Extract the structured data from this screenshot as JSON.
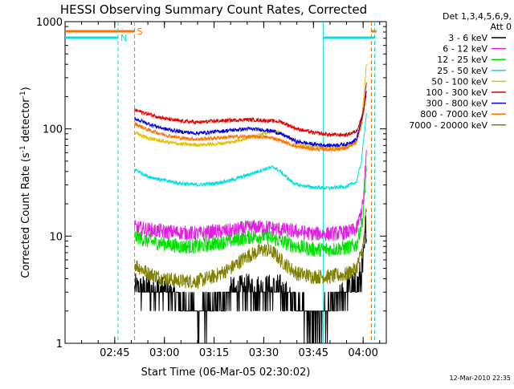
{
  "chart_data": {
    "type": "line",
    "title": "HESSI Observing Summary Count Rates, Corrected",
    "xlabel": "Start Time (06-Mar-05 02:30:02)",
    "ylabel_main": "Corrected Count Rate (s",
    "ylabel_sup1": "-1",
    "ylabel_mid": " detector",
    "ylabel_sup2": "-1",
    "ylabel_end": ")",
    "y_scale": "log",
    "ylim": [
      1,
      1000
    ],
    "xlim_minutes": [
      0,
      97
    ],
    "x_ticks": [
      {
        "minute": 15,
        "label": "02:45"
      },
      {
        "minute": 30,
        "label": "03:00"
      },
      {
        "minute": 45,
        "label": "03:15"
      },
      {
        "minute": 60,
        "label": "03:30"
      },
      {
        "minute": 75,
        "label": "03:45"
      },
      {
        "minute": 90,
        "label": "04:00"
      }
    ],
    "y_ticks": [
      {
        "value": 1000,
        "label": "1000"
      },
      {
        "value": 100,
        "label": "100"
      },
      {
        "value": 10,
        "label": "10"
      },
      {
        "value": 1,
        "label": "1"
      }
    ],
    "legend_header": [
      "Det 1,3,4,5,6,9,",
      "Att 0"
    ],
    "legend_position": "right",
    "series": [
      {
        "name": "3 - 6 keV",
        "color": "#000000",
        "points": [
          [
            21,
            3
          ],
          [
            25,
            3
          ],
          [
            30,
            3
          ],
          [
            35,
            2.2
          ],
          [
            40,
            1.5
          ],
          [
            45,
            1.8
          ],
          [
            50,
            2.8
          ],
          [
            55,
            3
          ],
          [
            60,
            3
          ],
          [
            65,
            3
          ],
          [
            70,
            2
          ],
          [
            75,
            1.3
          ],
          [
            80,
            1.7
          ],
          [
            85,
            3
          ],
          [
            88,
            3.2
          ],
          [
            90,
            5
          ],
          [
            91,
            14
          ]
        ]
      },
      {
        "name": "6 - 12 keV",
        "color": "#e020e0",
        "points": [
          [
            21,
            12
          ],
          [
            25,
            11.5
          ],
          [
            30,
            11
          ],
          [
            35,
            10.8
          ],
          [
            40,
            10.5
          ],
          [
            45,
            11
          ],
          [
            50,
            11.2
          ],
          [
            55,
            12
          ],
          [
            60,
            12.2
          ],
          [
            65,
            11.5
          ],
          [
            70,
            11
          ],
          [
            75,
            10.5
          ],
          [
            80,
            10.5
          ],
          [
            85,
            10.8
          ],
          [
            88,
            11.5
          ],
          [
            90,
            20
          ],
          [
            91,
            60
          ]
        ]
      },
      {
        "name": "12 - 25 keV",
        "color": "#00e000",
        "points": [
          [
            21,
            10
          ],
          [
            25,
            9
          ],
          [
            30,
            8.5
          ],
          [
            35,
            8
          ],
          [
            40,
            8
          ],
          [
            45,
            8.5
          ],
          [
            50,
            9
          ],
          [
            55,
            9.8
          ],
          [
            60,
            10
          ],
          [
            65,
            9
          ],
          [
            70,
            8
          ],
          [
            75,
            7.5
          ],
          [
            80,
            7.5
          ],
          [
            85,
            7.8
          ],
          [
            88,
            8.2
          ],
          [
            90,
            15
          ],
          [
            91,
            45
          ]
        ]
      },
      {
        "name": "25 - 50 keV",
        "color": "#00e0e0",
        "points": [
          [
            21,
            42
          ],
          [
            25,
            36
          ],
          [
            30,
            33
          ],
          [
            35,
            31
          ],
          [
            40,
            30
          ],
          [
            45,
            31
          ],
          [
            50,
            33
          ],
          [
            55,
            37
          ],
          [
            60,
            42
          ],
          [
            63,
            44
          ],
          [
            65,
            40
          ],
          [
            68,
            33
          ],
          [
            70,
            30
          ],
          [
            75,
            28.5
          ],
          [
            80,
            28
          ],
          [
            85,
            29
          ],
          [
            88,
            32
          ],
          [
            89.5,
            50
          ],
          [
            91,
            140
          ]
        ]
      },
      {
        "name": "50 - 100 keV",
        "color": "#e0c000",
        "points": [
          [
            21,
            92
          ],
          [
            25,
            82
          ],
          [
            30,
            76
          ],
          [
            35,
            72
          ],
          [
            40,
            71
          ],
          [
            45,
            72
          ],
          [
            50,
            75
          ],
          [
            55,
            82
          ],
          [
            60,
            90
          ],
          [
            63,
            96
          ],
          [
            65,
            92
          ],
          [
            68,
            80
          ],
          [
            70,
            72
          ],
          [
            75,
            68
          ],
          [
            80,
            66
          ],
          [
            85,
            68
          ],
          [
            88,
            75
          ],
          [
            89.5,
            110
          ],
          [
            91,
            400
          ]
        ]
      },
      {
        "name": "100 - 300 keV",
        "color": "#e00000",
        "points": [
          [
            21,
            150
          ],
          [
            25,
            138
          ],
          [
            30,
            125
          ],
          [
            35,
            118
          ],
          [
            40,
            115
          ],
          [
            45,
            118
          ],
          [
            50,
            120
          ],
          [
            55,
            122
          ],
          [
            60,
            120
          ],
          [
            65,
            117
          ],
          [
            70,
            100
          ],
          [
            75,
            92
          ],
          [
            80,
            88
          ],
          [
            85,
            88
          ],
          [
            88,
            95
          ],
          [
            90,
            140
          ],
          [
            91,
            270
          ]
        ]
      },
      {
        "name": "300 - 800 keV",
        "color": "#0000e0",
        "points": [
          [
            21,
            125
          ],
          [
            25,
            112
          ],
          [
            30,
            100
          ],
          [
            35,
            94
          ],
          [
            40,
            91
          ],
          [
            45,
            94
          ],
          [
            50,
            97
          ],
          [
            55,
            100
          ],
          [
            60,
            98
          ],
          [
            63,
            95
          ],
          [
            65,
            90
          ],
          [
            68,
            82
          ],
          [
            70,
            76
          ],
          [
            75,
            72
          ],
          [
            80,
            70
          ],
          [
            85,
            72
          ],
          [
            88,
            80
          ],
          [
            89.5,
            120
          ],
          [
            91,
            220
          ]
        ]
      },
      {
        "name": "800 - 7000 keV",
        "color": "#ff7000",
        "points": [
          [
            21,
            112
          ],
          [
            25,
            98
          ],
          [
            30,
            88
          ],
          [
            35,
            82
          ],
          [
            40,
            80
          ],
          [
            45,
            82
          ],
          [
            50,
            84
          ],
          [
            55,
            85
          ],
          [
            60,
            84
          ],
          [
            63,
            82
          ],
          [
            65,
            78
          ],
          [
            68,
            72
          ],
          [
            70,
            68
          ],
          [
            75,
            65
          ],
          [
            80,
            64
          ],
          [
            85,
            66
          ],
          [
            88,
            75
          ],
          [
            89.5,
            110
          ],
          [
            91,
            200
          ]
        ]
      },
      {
        "name": "7000 - 20000 keV",
        "color": "#808000",
        "points": [
          [
            21,
            5.5
          ],
          [
            25,
            4.5
          ],
          [
            30,
            4
          ],
          [
            35,
            3.8
          ],
          [
            40,
            3.8
          ],
          [
            45,
            4.2
          ],
          [
            50,
            5
          ],
          [
            55,
            6.5
          ],
          [
            60,
            7.5
          ],
          [
            63,
            7
          ],
          [
            65,
            6
          ],
          [
            68,
            5
          ],
          [
            70,
            4.5
          ],
          [
            75,
            4.2
          ],
          [
            80,
            4.2
          ],
          [
            85,
            4.4
          ],
          [
            88,
            5
          ],
          [
            90,
            8
          ],
          [
            91,
            18
          ]
        ]
      }
    ],
    "markers": [
      {
        "type": "segment",
        "color": "#ff7000",
        "label": "S",
        "x_start": 0,
        "x_end": 21,
        "y_frac_from_top": 0.03
      },
      {
        "type": "vline",
        "color": "#ff7000",
        "x": 21
      },
      {
        "type": "vline",
        "color": "#ff7000",
        "x": 92.5
      },
      {
        "type": "segment",
        "color": "#ff7000",
        "label": "",
        "x_start": 92.5,
        "x_end": 94,
        "y_frac_from_top": 0.03
      },
      {
        "type": "segment",
        "color": "#00e0e0",
        "label": "N",
        "x_start": 0,
        "x_end": 16,
        "y_frac_from_top": 0.05
      },
      {
        "type": "vline",
        "color": "#00e0e0",
        "x": 16
      },
      {
        "type": "vline",
        "color": "#00e0e0",
        "x": 78
      },
      {
        "type": "segment",
        "color": "#00e0e0",
        "label": "",
        "x_start": 78,
        "x_end": 93.5,
        "y_frac_from_top": 0.05
      },
      {
        "type": "vline",
        "color": "#00e0e0",
        "x": 93.5
      }
    ]
  },
  "footer_timestamp": "12-Mar-2010 22:35"
}
